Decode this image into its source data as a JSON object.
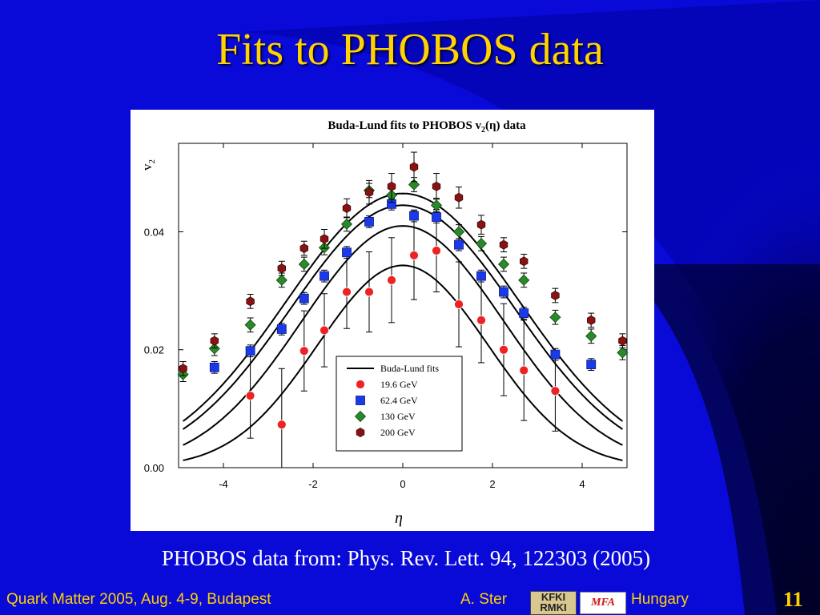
{
  "slide": {
    "title": "Fits to PHOBOS data",
    "citation": "PHOBOS data from: Phys. Rev. Lett. 94, 122303 (2005)",
    "footer_left": "Quark Matter 2005, Aug. 4-9, Budapest",
    "footer_author": "A. Ster",
    "footer_country": "Hungary",
    "slide_number": "11",
    "logo_kfki_text": "KFKI RMKI",
    "logo_mfa_text": "MFA",
    "colors": {
      "background": "#0a0ad8",
      "title": "#ffd200",
      "text": "#ffffff"
    }
  },
  "chart_data": {
    "type": "scatter",
    "title_prefix": "Buda-Lund fits to PHOBOS v",
    "title_sub": "2",
    "title_suffix": "(η) data",
    "xlabel": "η",
    "ylabel": "v",
    "ylabel_sub": "2",
    "xlim": [
      -5.0,
      5.0
    ],
    "ylim": [
      0.0,
      0.055
    ],
    "xticks": [
      -4,
      -2,
      0,
      2,
      4
    ],
    "yticks": [
      0.0,
      0.02,
      0.04
    ],
    "xtick_labels": [
      "-4",
      "-2",
      "0",
      "2",
      "4"
    ],
    "ytick_labels": [
      "0.00",
      "0.02",
      "0.04"
    ],
    "grid": false,
    "legend_position": "bottom-right inside",
    "legend_entries": [
      "Buda-Lund fits",
      "19.6 GeV",
      "62.4 GeV",
      "130 GeV",
      "200 GeV"
    ],
    "fit_curves": [
      {
        "name": "Buda-Lund fits",
        "amplitude": 0.0465,
        "width": 2.6,
        "color": "#000000"
      },
      {
        "name": "Buda-Lund fits",
        "amplitude": 0.0445,
        "width": 2.5,
        "color": "#000000"
      },
      {
        "name": "Buda-Lund fits",
        "amplitude": 0.041,
        "width": 2.25,
        "color": "#000000"
      },
      {
        "name": "Buda-Lund fits",
        "amplitude": 0.0343,
        "width": 1.9,
        "color": "#000000"
      }
    ],
    "series": [
      {
        "name": "19.6 GeV",
        "marker": "circle",
        "color": "#ee2222",
        "x": [
          -3.4,
          -2.7,
          -2.2,
          -1.75,
          -1.25,
          -0.75,
          -0.25,
          0.25,
          0.75,
          1.25,
          1.75,
          2.25,
          2.7,
          3.4
        ],
        "y": [
          0.0122,
          0.0073,
          0.0198,
          0.0233,
          0.0298,
          0.0298,
          0.0318,
          0.036,
          0.0368,
          0.0277,
          0.025,
          0.02,
          0.0165,
          0.013
        ],
        "err": [
          0.0072,
          0.0095,
          0.0068,
          0.0062,
          0.0062,
          0.0068,
          0.0072,
          0.0075,
          0.007,
          0.0072,
          0.0072,
          0.0078,
          0.0085,
          0.0068
        ]
      },
      {
        "name": "62.4 GeV",
        "marker": "square",
        "color": "#1a3ae8",
        "x": [
          -4.2,
          -3.4,
          -2.7,
          -2.2,
          -1.75,
          -1.25,
          -0.75,
          -0.25,
          0.25,
          0.75,
          1.25,
          1.75,
          2.25,
          2.7,
          3.4,
          4.2
        ],
        "y": [
          0.017,
          0.0198,
          0.0235,
          0.0287,
          0.0325,
          0.0365,
          0.0417,
          0.0447,
          0.0427,
          0.0425,
          0.0378,
          0.0325,
          0.0298,
          0.0262,
          0.0192,
          0.0175
        ],
        "err": [
          0.001,
          0.001,
          0.001,
          0.001,
          0.001,
          0.001,
          0.001,
          0.001,
          0.001,
          0.001,
          0.001,
          0.001,
          0.001,
          0.001,
          0.001,
          0.001
        ]
      },
      {
        "name": "130 GeV",
        "marker": "diamond",
        "color": "#2a8a2a",
        "x": [
          -4.9,
          -4.2,
          -3.4,
          -2.7,
          -2.2,
          -1.75,
          -1.25,
          -0.75,
          -0.25,
          0.25,
          0.75,
          1.25,
          1.75,
          2.25,
          2.7,
          3.4,
          4.2,
          4.9
        ],
        "y": [
          0.0158,
          0.0202,
          0.0242,
          0.0318,
          0.0345,
          0.0373,
          0.0413,
          0.047,
          0.0462,
          0.048,
          0.0445,
          0.04,
          0.038,
          0.0345,
          0.0318,
          0.0255,
          0.0223,
          0.0195
        ],
        "err": [
          0.0012,
          0.0012,
          0.0012,
          0.0012,
          0.0012,
          0.0012,
          0.0012,
          0.0012,
          0.0012,
          0.0012,
          0.0012,
          0.0012,
          0.0012,
          0.0012,
          0.0012,
          0.0012,
          0.0012,
          0.0012
        ]
      },
      {
        "name": "200 GeV",
        "marker": "hexagon",
        "color": "#8b1212",
        "x": [
          -4.9,
          -4.2,
          -3.4,
          -2.7,
          -2.2,
          -1.75,
          -1.25,
          -0.75,
          -0.25,
          0.25,
          0.75,
          1.25,
          1.75,
          2.25,
          2.7,
          3.4,
          4.2,
          4.9
        ],
        "y": [
          0.0168,
          0.0215,
          0.0282,
          0.0338,
          0.0372,
          0.0388,
          0.044,
          0.0467,
          0.0477,
          0.051,
          0.0477,
          0.0458,
          0.0412,
          0.0378,
          0.035,
          0.0292,
          0.025,
          0.0215
        ],
        "err": [
          0.0012,
          0.0012,
          0.0012,
          0.0012,
          0.0012,
          0.0016,
          0.0016,
          0.002,
          0.0022,
          0.0025,
          0.0022,
          0.0018,
          0.0016,
          0.0012,
          0.0012,
          0.0012,
          0.0012,
          0.0012
        ]
      }
    ]
  }
}
